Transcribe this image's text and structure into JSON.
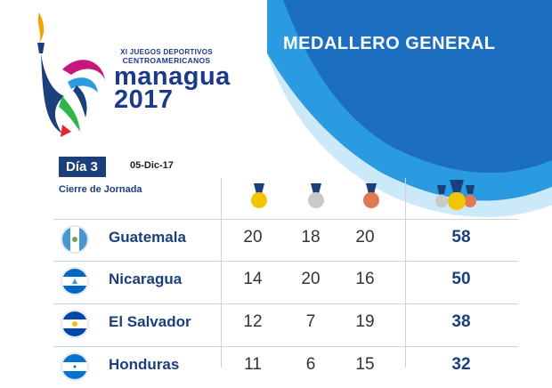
{
  "logo": {
    "line1": "XI JUEGOS DEPORTIVOS",
    "line2": "CENTROAMERICANOS",
    "line3": "managua",
    "line4": "2017"
  },
  "header": {
    "title": "MEDALLERO GENERAL"
  },
  "day": {
    "label": "Día 3",
    "date": "05-Dic-17",
    "subtitle": "Cierre de Jornada"
  },
  "medal_icons": [
    "gold-medal-icon",
    "silver-medal-icon",
    "bronze-medal-icon",
    "total-medals-icon"
  ],
  "rows": [
    {
      "country": "Guatemala",
      "flag": "guatemala-flag-icon",
      "gold": "20",
      "silver": "18",
      "bronze": "20",
      "total": "58"
    },
    {
      "country": "Nicaragua",
      "flag": "nicaragua-flag-icon",
      "gold": "14",
      "silver": "20",
      "bronze": "16",
      "total": "50"
    },
    {
      "country": "El Salvador",
      "flag": "el-salvador-flag-icon",
      "gold": "12",
      "silver": "7",
      "bronze": "19",
      "total": "38"
    },
    {
      "country": "Honduras",
      "flag": "honduras-flag-icon",
      "gold": "11",
      "silver": "6",
      "bronze": "15",
      "total": "32"
    }
  ],
  "colors": {
    "navy": "#1b3f7a",
    "blue": "#1f74c4",
    "light_blue": "#2a9be0",
    "gold": "#f2c500",
    "silver": "#c9c9c9",
    "bronze": "#e07a55"
  }
}
